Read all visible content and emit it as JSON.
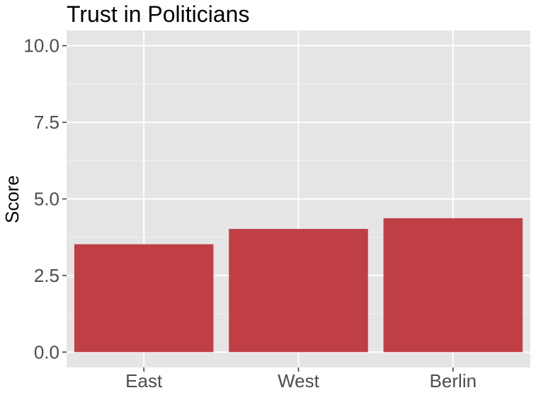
{
  "chart_data": {
    "type": "bar",
    "title": "Trust in Politicians",
    "xlabel": "",
    "ylabel": "Score",
    "categories": [
      "East",
      "West",
      "Berlin"
    ],
    "values": [
      3.52,
      4.02,
      4.37
    ],
    "ylim": [
      0,
      10
    ],
    "y_ticks": [
      "0.0",
      "2.5",
      "5.0",
      "7.5",
      "10.0"
    ],
    "y_tick_values": [
      0,
      2.5,
      5,
      7.5,
      10
    ],
    "grid": true,
    "legend": "none",
    "colors": {
      "bar": "#c03f45",
      "panel": "#e5e5e5",
      "grid_major": "#ffffff",
      "grid_minor": "#f2f2f2",
      "tick_text": "#4d4d4d",
      "tick_mark": "#333333"
    }
  }
}
